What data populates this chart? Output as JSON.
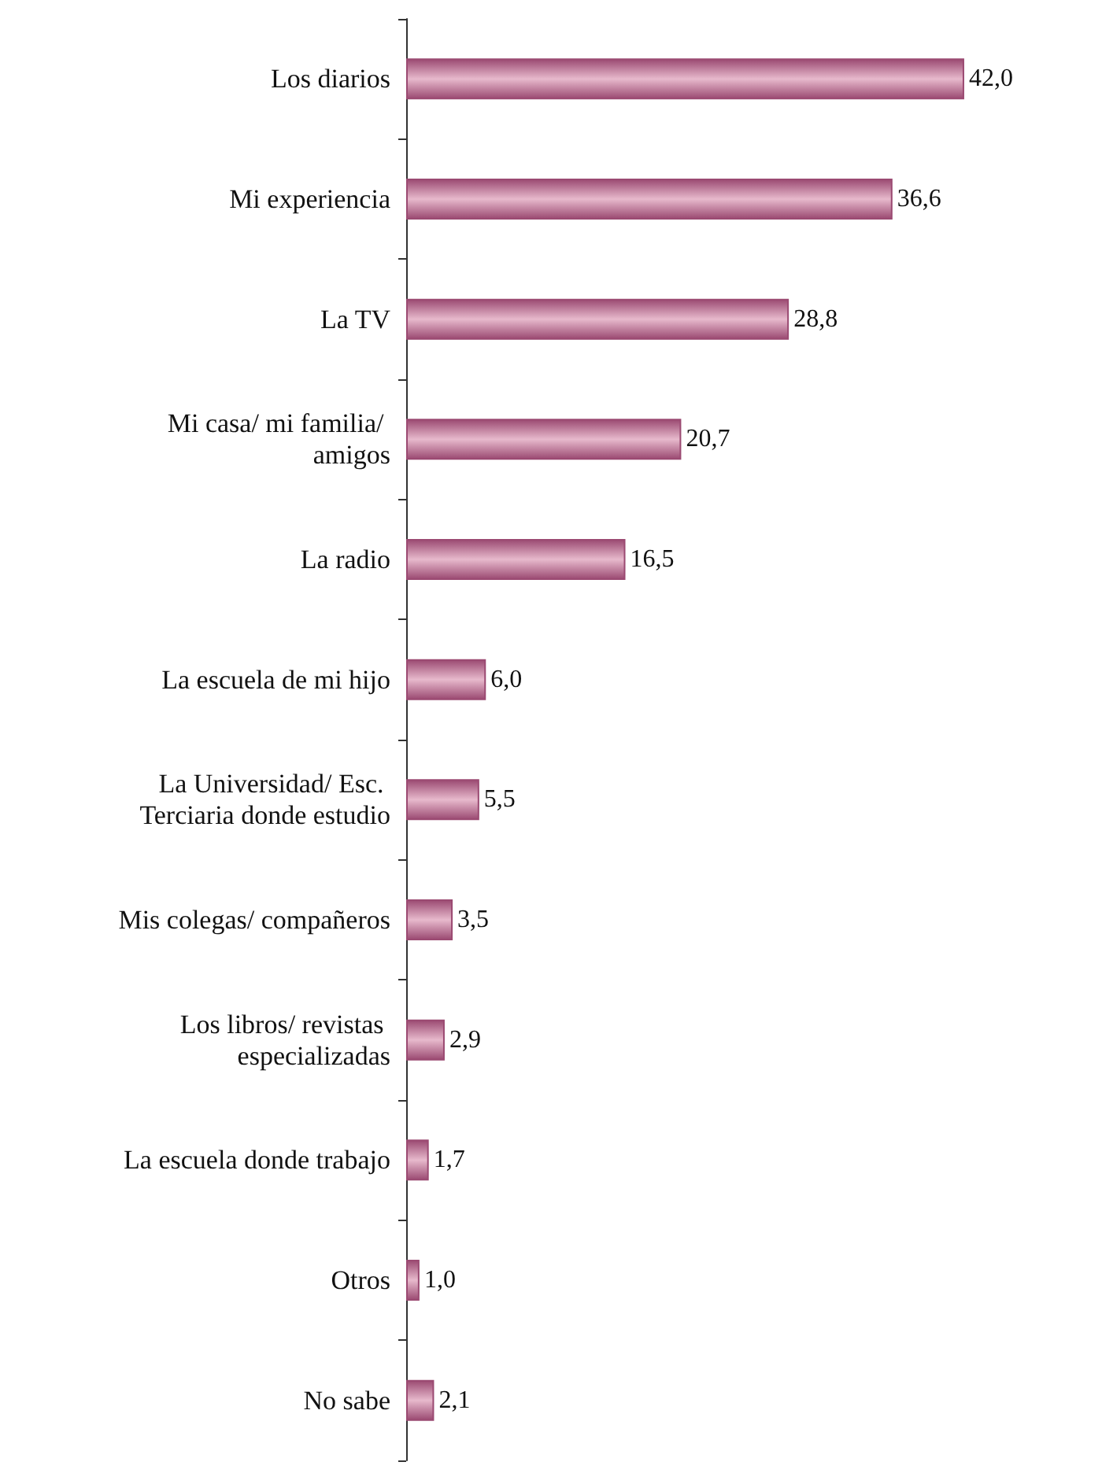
{
  "chart_data": {
    "type": "bar",
    "orientation": "horizontal",
    "categories": [
      "Los diarios",
      "Mi experiencia",
      "La TV",
      "Mi casa/ mi familia/ amigos",
      "La radio",
      "La escuela de mi hijo",
      "La Universidad/ Esc. Terciaria donde estudio",
      "Mis colegas/ compañeros",
      "Los libros/ revistas especializadas",
      "La escuela donde trabajo",
      "Otros",
      "No sabe"
    ],
    "values": [
      42.0,
      36.6,
      28.8,
      20.7,
      16.5,
      6.0,
      5.5,
      3.5,
      2.9,
      1.7,
      1.0,
      2.1
    ],
    "value_labels": [
      "42,0",
      "36,6",
      "28,8",
      "20,7",
      "16,5",
      "6,0",
      "5,5",
      "3,5",
      "2,9",
      "1,7",
      "1,0",
      "2,1"
    ],
    "color": "#9b4a72"
  }
}
